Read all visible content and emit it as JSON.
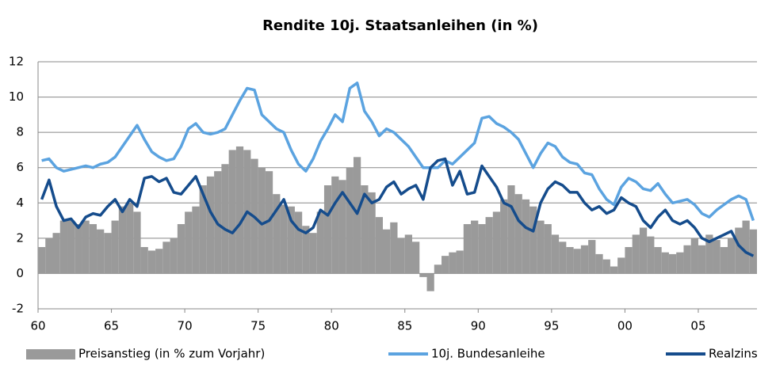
{
  "chart_data": {
    "type": "bar_line",
    "title": "Rendite 10j. Staatsanleihen (in %)",
    "x": [
      1960,
      1960.5,
      1961,
      1961.5,
      1962,
      1962.5,
      1963,
      1963.5,
      1964,
      1964.5,
      1965,
      1965.5,
      1966,
      1966.5,
      1967,
      1967.5,
      1968,
      1968.5,
      1969,
      1969.5,
      1970,
      1970.5,
      1971,
      1971.5,
      1972,
      1972.5,
      1973,
      1973.5,
      1974,
      1974.5,
      1975,
      1975.5,
      1976,
      1976.5,
      1977,
      1977.5,
      1978,
      1978.5,
      1979,
      1979.5,
      1980,
      1980.5,
      1981,
      1981.5,
      1982,
      1982.5,
      1983,
      1983.5,
      1984,
      1984.5,
      1985,
      1985.5,
      1986,
      1986.5,
      1987,
      1987.5,
      1988,
      1988.5,
      1989,
      1989.5,
      1990,
      1990.5,
      1991,
      1991.5,
      1992,
      1992.5,
      1993,
      1993.5,
      1994,
      1994.5,
      1995,
      1995.5,
      1996,
      1996.5,
      1997,
      1997.5,
      1998,
      1998.5,
      1999,
      1999.5,
      2000,
      2000.5,
      2001,
      2001.5,
      2002,
      2002.5,
      2003,
      2003.5,
      2004,
      2004.5,
      2005,
      2005.5,
      2006,
      2006.5,
      2007,
      2007.5,
      2008,
      2008.5
    ],
    "series": [
      {
        "name": "Preisanstieg (in % zum Vorjahr)",
        "kind": "bar",
        "color": "#9a9a9a",
        "values": [
          1.5,
          2.0,
          2.3,
          3.0,
          3.0,
          2.8,
          3.0,
          2.8,
          2.5,
          2.3,
          3.0,
          3.8,
          4.0,
          3.5,
          1.5,
          1.3,
          1.4,
          1.8,
          2.0,
          2.8,
          3.5,
          3.8,
          5.0,
          5.5,
          5.8,
          6.2,
          7.0,
          7.2,
          7.0,
          6.5,
          6.0,
          5.8,
          4.5,
          3.9,
          3.8,
          3.5,
          2.7,
          2.3,
          3.5,
          5.0,
          5.5,
          5.3,
          6.0,
          6.6,
          5.0,
          4.6,
          3.2,
          2.5,
          2.9,
          2.0,
          2.2,
          1.8,
          -0.2,
          -1.0,
          0.5,
          1.0,
          1.2,
          1.3,
          2.8,
          3.0,
          2.8,
          3.2,
          3.5,
          4.2,
          5.0,
          4.5,
          4.2,
          3.8,
          3.0,
          2.8,
          2.2,
          1.8,
          1.5,
          1.4,
          1.6,
          1.9,
          1.1,
          0.8,
          0.4,
          0.9,
          1.5,
          2.2,
          2.6,
          2.1,
          1.5,
          1.2,
          1.1,
          1.2,
          1.6,
          2.0,
          1.6,
          2.2,
          1.9,
          1.5,
          2.0,
          2.6,
          3.0,
          2.5
        ]
      },
      {
        "name": "10j. Bundesanleihe",
        "kind": "line",
        "color": "#5ba3e0",
        "values": [
          6.4,
          6.5,
          6.0,
          5.8,
          5.9,
          6.0,
          6.1,
          6.0,
          6.2,
          6.3,
          6.6,
          7.2,
          7.8,
          8.4,
          7.6,
          6.9,
          6.6,
          6.4,
          6.5,
          7.2,
          8.2,
          8.5,
          8.0,
          7.9,
          8.0,
          8.2,
          9.0,
          9.8,
          10.5,
          10.4,
          9.0,
          8.6,
          8.2,
          8.0,
          7.0,
          6.2,
          5.8,
          6.5,
          7.5,
          8.2,
          9.0,
          8.6,
          10.5,
          10.8,
          9.2,
          8.6,
          7.8,
          8.2,
          8.0,
          7.6,
          7.2,
          6.6,
          6.0,
          6.0,
          6.0,
          6.4,
          6.2,
          6.6,
          7.0,
          7.4,
          8.8,
          8.9,
          8.5,
          8.3,
          8.0,
          7.6,
          6.8,
          6.0,
          6.8,
          7.4,
          7.2,
          6.6,
          6.3,
          6.2,
          5.7,
          5.6,
          4.8,
          4.2,
          3.9,
          4.9,
          5.4,
          5.2,
          4.8,
          4.7,
          5.1,
          4.5,
          4.0,
          4.1,
          4.2,
          3.9,
          3.4,
          3.2,
          3.6,
          3.9,
          4.2,
          4.4,
          4.2,
          3.0
        ]
      },
      {
        "name": "Realzins",
        "kind": "line",
        "color": "#154c8c",
        "values": [
          4.2,
          5.3,
          3.8,
          3.0,
          3.1,
          2.6,
          3.2,
          3.4,
          3.3,
          3.8,
          4.2,
          3.5,
          4.2,
          3.8,
          5.4,
          5.5,
          5.2,
          5.4,
          4.6,
          4.5,
          5.0,
          5.5,
          4.5,
          3.5,
          2.8,
          2.5,
          2.3,
          2.8,
          3.5,
          3.2,
          2.8,
          3.0,
          3.6,
          4.2,
          3.0,
          2.5,
          2.3,
          2.6,
          3.6,
          3.3,
          4.0,
          4.6,
          4.0,
          3.4,
          4.5,
          4.0,
          4.2,
          4.9,
          5.2,
          4.5,
          4.8,
          5.0,
          4.2,
          6.0,
          6.4,
          6.5,
          5.0,
          5.8,
          4.5,
          4.6,
          6.1,
          5.5,
          4.9,
          4.0,
          3.8,
          3.0,
          2.6,
          2.4,
          4.0,
          4.8,
          5.2,
          5.0,
          4.6,
          4.6,
          4.0,
          3.6,
          3.8,
          3.4,
          3.6,
          4.3,
          4.0,
          3.8,
          3.0,
          2.6,
          3.2,
          3.6,
          3.0,
          2.8,
          3.0,
          2.6,
          2.0,
          1.8,
          2.0,
          2.2,
          2.4,
          1.6,
          1.2,
          1.0
        ]
      }
    ],
    "xlim": [
      1960,
      2009
    ],
    "xticks": [
      {
        "value": 1960,
        "label": "60"
      },
      {
        "value": 1965,
        "label": "65"
      },
      {
        "value": 1970,
        "label": "70"
      },
      {
        "value": 1975,
        "label": "75"
      },
      {
        "value": 1980,
        "label": "80"
      },
      {
        "value": 1985,
        "label": "85"
      },
      {
        "value": 1990,
        "label": "90"
      },
      {
        "value": 1995,
        "label": "95"
      },
      {
        "value": 2000,
        "label": "00"
      },
      {
        "value": 2005,
        "label": "05"
      }
    ],
    "ylim": [
      -2,
      12
    ],
    "yticks": [
      -2,
      0,
      2,
      4,
      6,
      8,
      10,
      12
    ],
    "grid": true,
    "legend": "bottom"
  }
}
